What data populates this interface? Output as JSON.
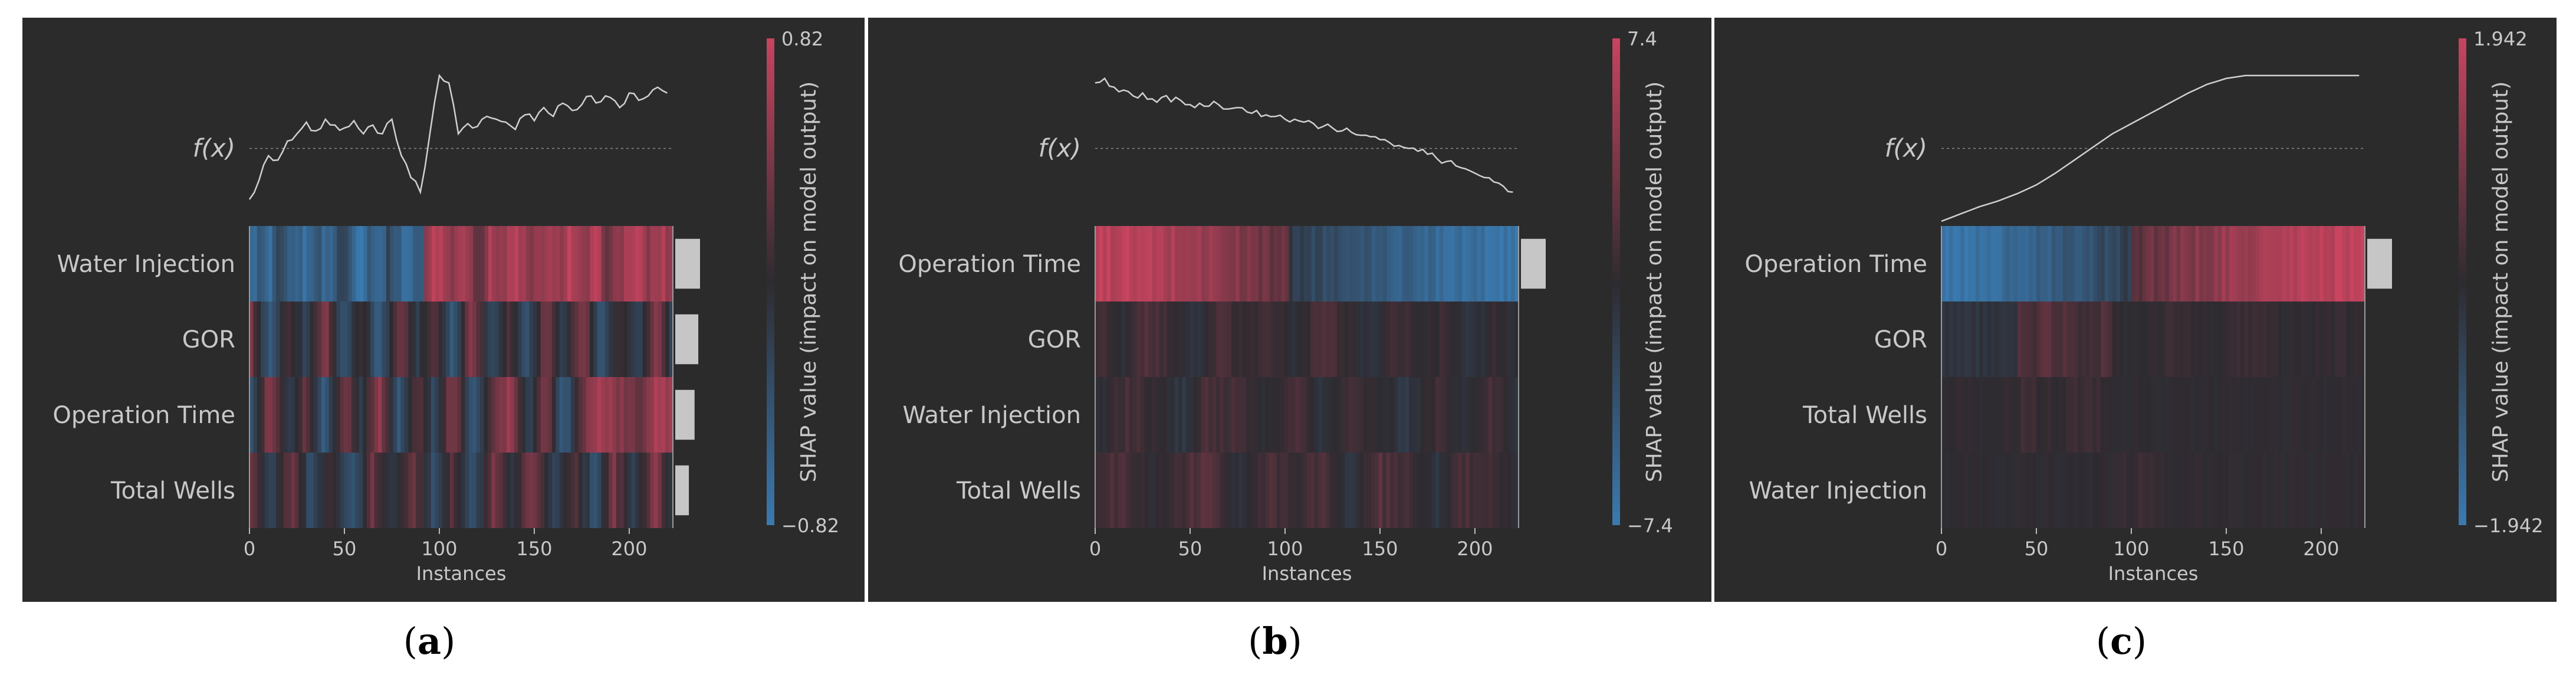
{
  "figure": {
    "panel_labels": [
      {
        "paren_open": "(",
        "letter": "a",
        "paren_close": ")"
      },
      {
        "paren_open": "(",
        "letter": "b",
        "paren_close": ")"
      },
      {
        "paren_open": "(",
        "letter": "c",
        "paren_close": ")"
      }
    ],
    "colors": {
      "background": "#2b2b2b",
      "text": "#c8c8c8",
      "high": "#c8445f",
      "low": "#3a7ab0",
      "mid": "#2e2b30",
      "importance_bar": "#c6c6c6"
    }
  },
  "chart_data": [
    {
      "type": "heatmap",
      "panel": "a",
      "fx_label": "f(x)",
      "features": [
        "Water Injection",
        "GOR",
        "Operation Time",
        "Total Wells"
      ],
      "importance": [
        1.0,
        0.93,
        0.78,
        0.55
      ],
      "xlabel": "Instances",
      "xticks": [
        0,
        50,
        100,
        150,
        200
      ],
      "xlim": [
        0,
        223
      ],
      "colorbar": {
        "max_label": "0.82",
        "min_label": "−0.82",
        "vmax": 0.82,
        "vmin": -0.82,
        "label": "SHAP value (impact on model output)"
      },
      "fx_curve": {
        "x": [
          0,
          5,
          10,
          15,
          20,
          25,
          30,
          35,
          40,
          45,
          50,
          55,
          60,
          65,
          70,
          75,
          80,
          85,
          90,
          95,
          100,
          105,
          110,
          115,
          120,
          125,
          130,
          135,
          140,
          145,
          150,
          155,
          160,
          165,
          170,
          175,
          180,
          185,
          190,
          195,
          200,
          205,
          210,
          215,
          220
        ],
        "y": [
          0.15,
          0.28,
          0.45,
          0.42,
          0.55,
          0.6,
          0.68,
          0.62,
          0.7,
          0.66,
          0.64,
          0.69,
          0.6,
          0.66,
          0.6,
          0.7,
          0.45,
          0.3,
          0.2,
          0.6,
          1.0,
          0.95,
          0.6,
          0.67,
          0.65,
          0.72,
          0.7,
          0.68,
          0.63,
          0.73,
          0.69,
          0.78,
          0.72,
          0.81,
          0.76,
          0.8,
          0.86,
          0.82,
          0.85,
          0.78,
          0.88,
          0.83,
          0.86,
          0.92,
          0.88
        ],
        "ref": 0.5
      },
      "rows": [
        {
          "segments": [
            {
              "from": 0,
              "to": 92,
              "pattern": [
                -0.85,
                -0.55,
                -0.95,
                -0.35,
                -0.75,
                -0.65,
                -0.9,
                -0.45,
                -0.8,
                -0.6,
                -0.2,
                -0.7,
                -0.95,
                -0.5,
                -0.85,
                -0.3,
                -0.65,
                -0.9,
                -0.55,
                -0.75
              ]
            },
            {
              "from": 92,
              "to": 223,
              "pattern": [
                0.7,
                0.95,
                0.55,
                0.85,
                0.3,
                0.8,
                0.65,
                0.9,
                0.45,
                0.75,
                0.6,
                0.95,
                0.5,
                0.85,
                0.35,
                0.7,
                0.9,
                0.6,
                0.8,
                0.55
              ]
            }
          ]
        },
        {
          "segments": [
            {
              "from": 0,
              "to": 223,
              "pattern": [
                0.4,
                -0.6,
                0.2,
                -0.3,
                0.6,
                -0.5,
                0.1,
                -0.7,
                0.5,
                -0.2,
                0.3,
                -0.6,
                0.7,
                -0.4,
                0.2,
                -0.5,
                0.45,
                -0.25,
                0.6,
                -0.65,
                0.15,
                -0.35,
                0.55,
                -0.45
              ]
            }
          ]
        },
        {
          "segments": [
            {
              "from": 0,
              "to": 223,
              "pattern": [
                -0.5,
                0.6,
                -0.3,
                0.4,
                -0.7,
                0.5,
                -0.2,
                0.7,
                -0.6,
                0.3,
                -0.4,
                0.65,
                -0.55,
                0.2,
                0.75,
                -0.35,
                0.5,
                -0.65,
                0.4,
                0.8,
                0.55,
                0.3,
                0.85,
                0.7
              ]
            }
          ]
        },
        {
          "segments": [
            {
              "from": 0,
              "to": 223,
              "pattern": [
                0.3,
                -0.3,
                0.45,
                -0.5,
                0.2,
                -0.6,
                0.35,
                -0.25,
                0.5,
                -0.45,
                0.25,
                -0.55,
                0.4,
                -0.2,
                0.55,
                -0.35,
                0.3,
                -0.5,
                0.45,
                -0.3,
                0.6,
                -0.4
              ]
            }
          ]
        }
      ]
    },
    {
      "type": "heatmap",
      "panel": "b",
      "fx_label": "f(x)",
      "features": [
        "Operation Time",
        "GOR",
        "Water Injection",
        "Total Wells"
      ],
      "importance": [
        1.0,
        0.0,
        0.0,
        0.0
      ],
      "xlabel": "Instances",
      "xticks": [
        0,
        50,
        100,
        150,
        200
      ],
      "xlim": [
        0,
        223
      ],
      "colorbar": {
        "max_label": "7.4",
        "min_label": "−7.4",
        "vmax": 7.4,
        "vmin": -7.4,
        "label": "SHAP value (impact on model output)"
      },
      "fx_curve": {
        "x": [
          0,
          5,
          10,
          15,
          20,
          25,
          30,
          35,
          40,
          45,
          50,
          55,
          60,
          65,
          70,
          75,
          80,
          85,
          90,
          95,
          100,
          105,
          110,
          115,
          120,
          125,
          130,
          135,
          140,
          145,
          150,
          155,
          160,
          165,
          170,
          175,
          180,
          185,
          190,
          195,
          200,
          205,
          210,
          215,
          220
        ],
        "y": [
          0.95,
          0.98,
          0.92,
          0.9,
          0.86,
          0.88,
          0.84,
          0.85,
          0.82,
          0.83,
          0.8,
          0.81,
          0.79,
          0.8,
          0.77,
          0.78,
          0.75,
          0.76,
          0.73,
          0.72,
          0.7,
          0.7,
          0.68,
          0.67,
          0.65,
          0.64,
          0.62,
          0.61,
          0.59,
          0.58,
          0.56,
          0.54,
          0.52,
          0.5,
          0.48,
          0.46,
          0.43,
          0.41,
          0.38,
          0.36,
          0.33,
          0.3,
          0.27,
          0.24,
          0.2
        ],
        "ref": 0.5
      },
      "rows": [
        {
          "segments": [
            {
              "from": 0,
              "to": 102,
              "pattern": [
                0.95,
                0.92,
                0.88,
                0.9,
                0.86,
                0.84,
                0.8,
                0.78,
                0.74,
                0.7,
                0.66,
                0.6,
                0.55,
                0.5,
                0.45,
                0.4,
                0.35,
                0.3
              ]
            },
            {
              "from": 102,
              "to": 223,
              "pattern": [
                -0.2,
                -0.3,
                -0.35,
                -0.45,
                -0.5,
                -0.55,
                -0.6,
                -0.65,
                -0.7,
                -0.72,
                -0.78,
                -0.82,
                -0.86,
                -0.9,
                -0.93,
                -0.96
              ]
            }
          ]
        },
        {
          "segments": [
            {
              "from": 0,
              "to": 223,
              "pattern": [
                0.15,
                -0.05,
                0.2,
                0.05,
                -0.1,
                0.18,
                0.0,
                0.12,
                -0.08,
                0.2,
                0.06,
                -0.12,
                0.15,
                -0.05,
                0.1,
                -0.15,
                0.05,
                -0.1
              ]
            }
          ]
        },
        {
          "segments": [
            {
              "from": 0,
              "to": 223,
              "pattern": [
                -0.1,
                0.15,
                0.05,
                -0.15,
                0.2,
                0.1,
                -0.05,
                0.18,
                -0.12,
                0.12,
                0.0,
                -0.18,
                0.1,
                -0.08,
                0.14,
                -0.1
              ]
            }
          ]
        },
        {
          "segments": [
            {
              "from": 0,
              "to": 223,
              "pattern": [
                0.1,
                0.2,
                -0.05,
                0.15,
                0.25,
                -0.1,
                0.2,
                0.05,
                0.18,
                -0.15,
                0.22,
                0.1,
                -0.12,
                0.16,
                0.08,
                -0.06
              ]
            }
          ]
        }
      ]
    },
    {
      "type": "heatmap",
      "panel": "c",
      "fx_label": "f(x)",
      "features": [
        "Operation Time",
        "GOR",
        "Total Wells",
        "Water Injection"
      ],
      "importance": [
        1.0,
        0.0,
        0.0,
        0.0
      ],
      "xlabel": "Instances",
      "xticks": [
        0,
        50,
        100,
        150,
        200
      ],
      "xlim": [
        0,
        223
      ],
      "colorbar": {
        "max_label": "1.942",
        "min_label": "−1.942",
        "vmax": 1.942,
        "vmin": -1.942,
        "label": "SHAP value (impact on model output)"
      },
      "fx_curve": {
        "x": [
          0,
          10,
          20,
          30,
          40,
          50,
          60,
          70,
          80,
          90,
          100,
          110,
          120,
          130,
          140,
          150,
          160,
          170,
          180,
          190,
          200,
          210,
          220
        ],
        "y": [
          0.0,
          0.05,
          0.1,
          0.14,
          0.19,
          0.25,
          0.33,
          0.42,
          0.51,
          0.6,
          0.67,
          0.74,
          0.81,
          0.88,
          0.94,
          0.98,
          1.0,
          1.0,
          1.0,
          1.0,
          1.0,
          1.0,
          1.0
        ],
        "ref": 0.5
      },
      "rows": [
        {
          "segments": [
            {
              "from": 0,
              "to": 100,
              "pattern": [
                -0.98,
                -0.95,
                -0.92,
                -0.88,
                -0.84,
                -0.8,
                -0.75,
                -0.7,
                -0.64,
                -0.58,
                -0.52,
                -0.45,
                -0.38,
                -0.3,
                -0.22
              ]
            },
            {
              "from": 100,
              "to": 223,
              "pattern": [
                0.3,
                0.38,
                0.45,
                0.52,
                0.58,
                0.64,
                0.7,
                0.75,
                0.8,
                0.84,
                0.88,
                0.92,
                0.95,
                0.97
              ]
            }
          ]
        },
        {
          "segments": [
            {
              "from": 0,
              "to": 40,
              "pattern": [
                -0.12,
                -0.1,
                -0.14,
                -0.08
              ]
            },
            {
              "from": 40,
              "to": 90,
              "pattern": [
                0.25,
                0.1,
                0.3,
                0.15,
                0.28,
                0.05,
                0.22,
                0.12
              ]
            },
            {
              "from": 90,
              "to": 223,
              "pattern": [
                0.0,
                0.0,
                0.08,
                0.0,
                0.0,
                0.12,
                0.0,
                0.0,
                0.06,
                0.0
              ]
            }
          ]
        },
        {
          "segments": [
            {
              "from": 0,
              "to": 223,
              "pattern": [
                0.0,
                0.0,
                0.0,
                0.1,
                0.0,
                0.12,
                0.0,
                0.0,
                0.0,
                0.0,
                0.0,
                0.0,
                0.0,
                0.0,
                0.0,
                0.0
              ]
            }
          ]
        },
        {
          "segments": [
            {
              "from": 0,
              "to": 223,
              "pattern": [
                0.0,
                0.0,
                0.0,
                0.0,
                0.0,
                0.0,
                0.0,
                0.08,
                0.0,
                0.0,
                0.0,
                0.0,
                0.0,
                0.0,
                0.0,
                0.0
              ]
            }
          ]
        }
      ]
    }
  ]
}
